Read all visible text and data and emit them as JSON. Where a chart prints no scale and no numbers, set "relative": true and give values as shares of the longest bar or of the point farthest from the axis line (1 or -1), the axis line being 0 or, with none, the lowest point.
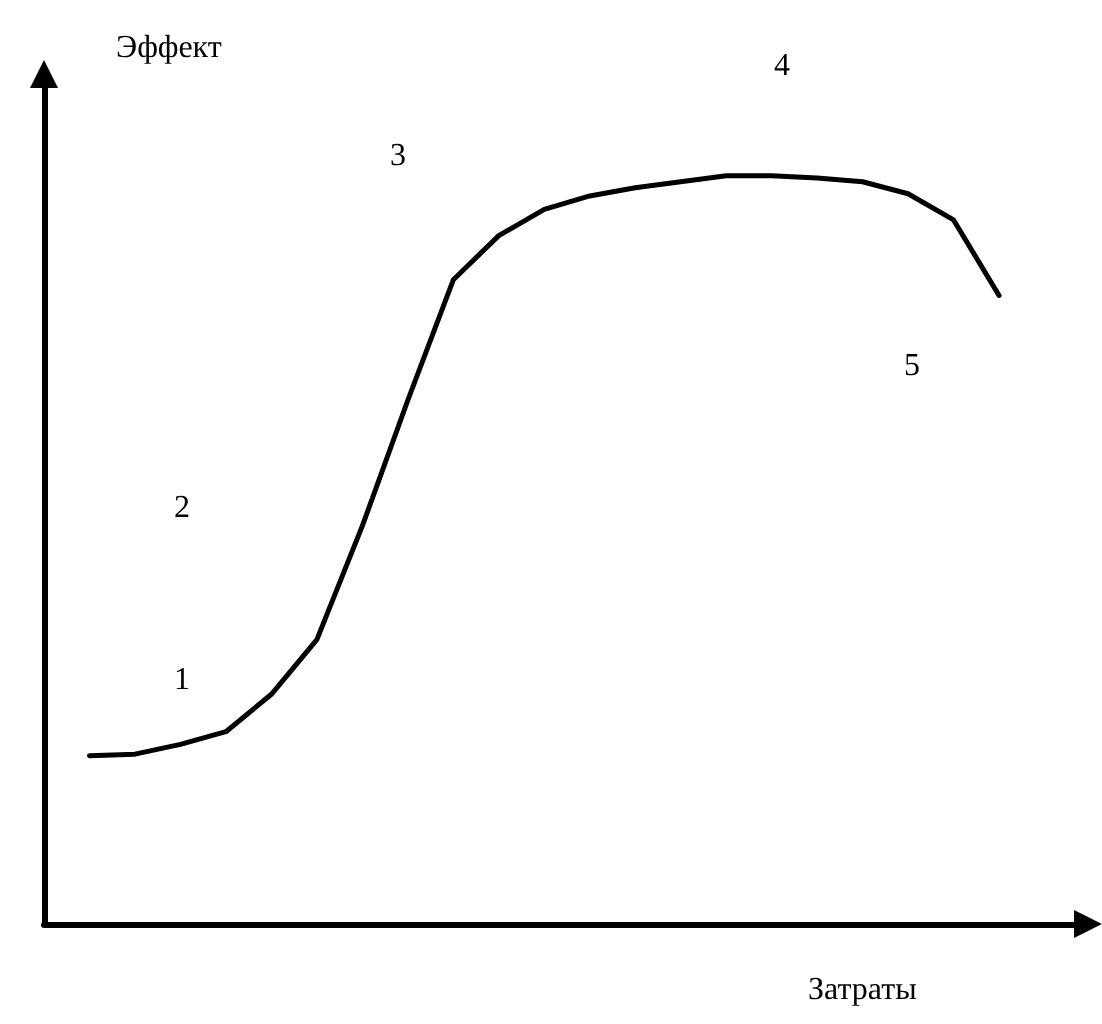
{
  "chart_data": {
    "type": "line",
    "relative": true,
    "xlabel": "Затраты",
    "ylabel": "Эффект",
    "categories": [
      null,
      null,
      null,
      null,
      null,
      null,
      null,
      null,
      null,
      null,
      null,
      null,
      null,
      null,
      null,
      null,
      null,
      null,
      null,
      null,
      null,
      null,
      null,
      null
    ],
    "series": [
      {
        "color": "#000000",
        "values": [
          null,
          0.225,
          0.227,
          0.24,
          0.257,
          0.307,
          0.38,
          0.532,
          0.7,
          0.861,
          0.92,
          0.955,
          0.973,
          0.984,
          0.992,
          1,
          1,
          0.997,
          0.992,
          0.976,
          0.941,
          0.84,
          null,
          null
        ]
      }
    ],
    "marker": "none",
    "line_style": "solid",
    "annotations": [
      "1",
      "2",
      "3",
      "4",
      "5"
    ]
  }
}
